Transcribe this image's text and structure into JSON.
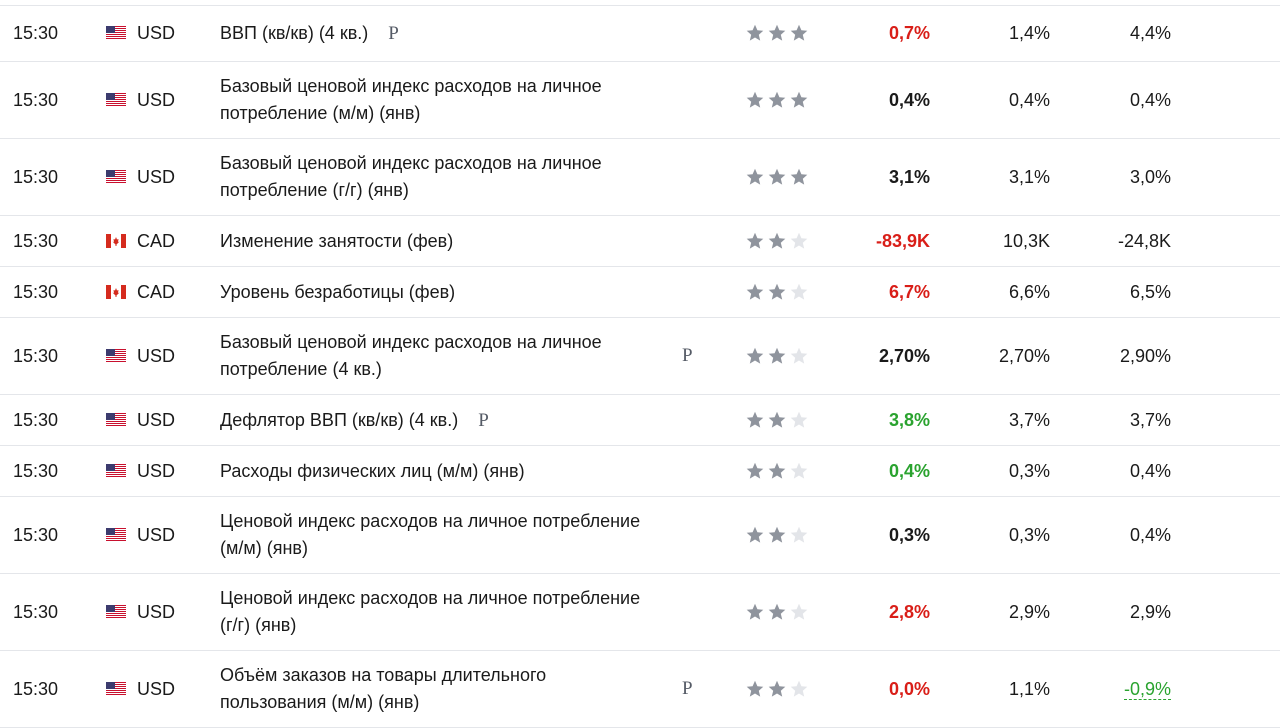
{
  "colors": {
    "negative": "#d91e18",
    "positive": "#2aa32f",
    "neutral": "#1a1a1a",
    "star_on": "#8f949d",
    "star_off": "#e3e5e9"
  },
  "rows": [
    {
      "time": "15:30",
      "flag_icon": "us-flag-icon",
      "currency": "USD",
      "event_lines": [
        "ВВП (кв/кв) (4 кв.)"
      ],
      "prelim": "P",
      "prelim_inline": true,
      "importance": 3,
      "actual": "0,7%",
      "actual_color": "negative",
      "forecast": "1,4%",
      "previous": "4,4%",
      "previous_revised": false
    },
    {
      "time": "15:30",
      "flag_icon": "us-flag-icon",
      "currency": "USD",
      "event_lines": [
        "Базовый ценовой индекс расходов на личное",
        "потребление (м/м) (янв)"
      ],
      "prelim": "",
      "importance": 3,
      "actual": "0,4%",
      "actual_color": "neutral",
      "forecast": "0,4%",
      "previous": "0,4%",
      "previous_revised": false
    },
    {
      "time": "15:30",
      "flag_icon": "us-flag-icon",
      "currency": "USD",
      "event_lines": [
        "Базовый ценовой индекс расходов на личное",
        "потребление (г/г) (янв)"
      ],
      "prelim": "",
      "importance": 3,
      "actual": "3,1%",
      "actual_color": "neutral",
      "forecast": "3,1%",
      "previous": "3,0%",
      "previous_revised": false
    },
    {
      "time": "15:30",
      "flag_icon": "ca-flag-icon",
      "currency": "CAD",
      "event_lines": [
        "Изменение занятости (фев)"
      ],
      "prelim": "",
      "importance": 2,
      "actual": "-83,9K",
      "actual_color": "negative",
      "forecast": "10,3K",
      "previous": "-24,8K",
      "previous_revised": false
    },
    {
      "time": "15:30",
      "flag_icon": "ca-flag-icon",
      "currency": "CAD",
      "event_lines": [
        "Уровень безработицы (фев)"
      ],
      "prelim": "",
      "importance": 2,
      "actual": "6,7%",
      "actual_color": "negative",
      "forecast": "6,6%",
      "previous": "6,5%",
      "previous_revised": false
    },
    {
      "time": "15:30",
      "flag_icon": "us-flag-icon",
      "currency": "USD",
      "event_lines": [
        "Базовый ценовой индекс расходов на личное",
        "потребление (4 кв.)"
      ],
      "prelim": "P",
      "prelim_inline": false,
      "importance": 2,
      "actual": "2,70%",
      "actual_color": "neutral",
      "forecast": "2,70%",
      "previous": "2,90%",
      "previous_revised": false
    },
    {
      "time": "15:30",
      "flag_icon": "us-flag-icon",
      "currency": "USD",
      "event_lines": [
        "Дефлятор ВВП (кв/кв) (4 кв.)"
      ],
      "prelim": "P",
      "prelim_inline": true,
      "importance": 2,
      "actual": "3,8%",
      "actual_color": "positive",
      "forecast": "3,7%",
      "previous": "3,7%",
      "previous_revised": false
    },
    {
      "time": "15:30",
      "flag_icon": "us-flag-icon",
      "currency": "USD",
      "event_lines": [
        "Расходы физических лиц (м/м) (янв)"
      ],
      "prelim": "",
      "importance": 2,
      "actual": "0,4%",
      "actual_color": "positive",
      "forecast": "0,3%",
      "previous": "0,4%",
      "previous_revised": false
    },
    {
      "time": "15:30",
      "flag_icon": "us-flag-icon",
      "currency": "USD",
      "event_lines": [
        "Ценовой индекс расходов на личное потребление",
        "(м/м) (янв)"
      ],
      "prelim": "",
      "importance": 2,
      "actual": "0,3%",
      "actual_color": "neutral",
      "forecast": "0,3%",
      "previous": "0,4%",
      "previous_revised": false
    },
    {
      "time": "15:30",
      "flag_icon": "us-flag-icon",
      "currency": "USD",
      "event_lines": [
        "Ценовой индекс расходов на личное потребление",
        "(г/г) (янв)"
      ],
      "prelim": "",
      "importance": 2,
      "actual": "2,8%",
      "actual_color": "negative",
      "forecast": "2,9%",
      "previous": "2,9%",
      "previous_revised": false
    },
    {
      "time": "15:30",
      "flag_icon": "us-flag-icon",
      "currency": "USD",
      "event_lines": [
        "Объём заказов на товары длительного",
        "пользования (м/м) (янв)"
      ],
      "prelim": "P",
      "prelim_inline": false,
      "importance": 2,
      "actual": "0,0%",
      "actual_color": "negative",
      "forecast": "1,1%",
      "previous": "-0,9%",
      "previous_revised": true
    }
  ]
}
